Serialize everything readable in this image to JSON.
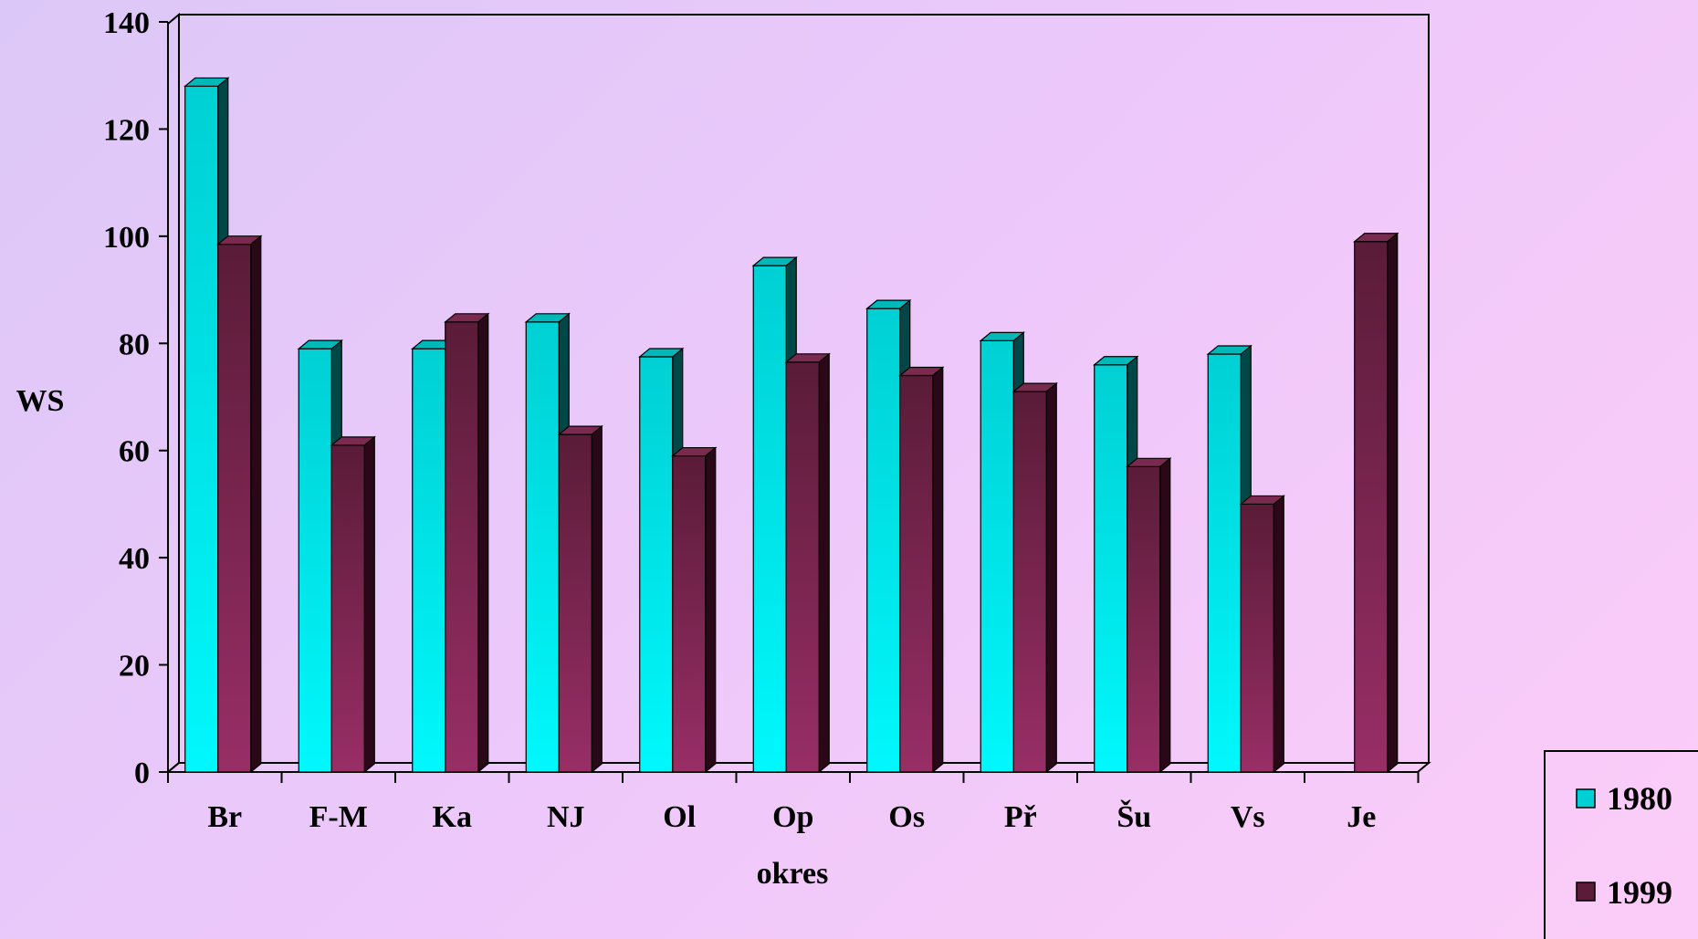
{
  "chart_data": {
    "type": "bar",
    "style": "3d-clustered",
    "categories": [
      "Br",
      "F-M",
      "Ka",
      "NJ",
      "Ol",
      "Op",
      "Os",
      "Př",
      "Šu",
      "Vs",
      "Je"
    ],
    "series": [
      {
        "name": "1980",
        "values": [
          128,
          79,
          79,
          84,
          77.5,
          94.5,
          86.5,
          80.5,
          76,
          78,
          null
        ]
      },
      {
        "name": "1999",
        "values": [
          98.5,
          61,
          84,
          63,
          59,
          76.5,
          74,
          71,
          57,
          50,
          99
        ]
      }
    ],
    "xlabel": "okres",
    "ylabel": "WS",
    "ylim": [
      0,
      140
    ],
    "yticks": [
      0,
      20,
      40,
      60,
      80,
      100,
      120,
      140
    ],
    "grid": false,
    "legend": "right",
    "colors": {
      "1980": {
        "top": "#00d0d4",
        "bottom": "#00f8fc",
        "side": "#004848",
        "cap": "#00b8b8"
      },
      "1999": {
        "top": "#5a1c38",
        "bottom": "#982e66",
        "side": "#2a0818",
        "cap": "#7a2a4e"
      }
    }
  }
}
